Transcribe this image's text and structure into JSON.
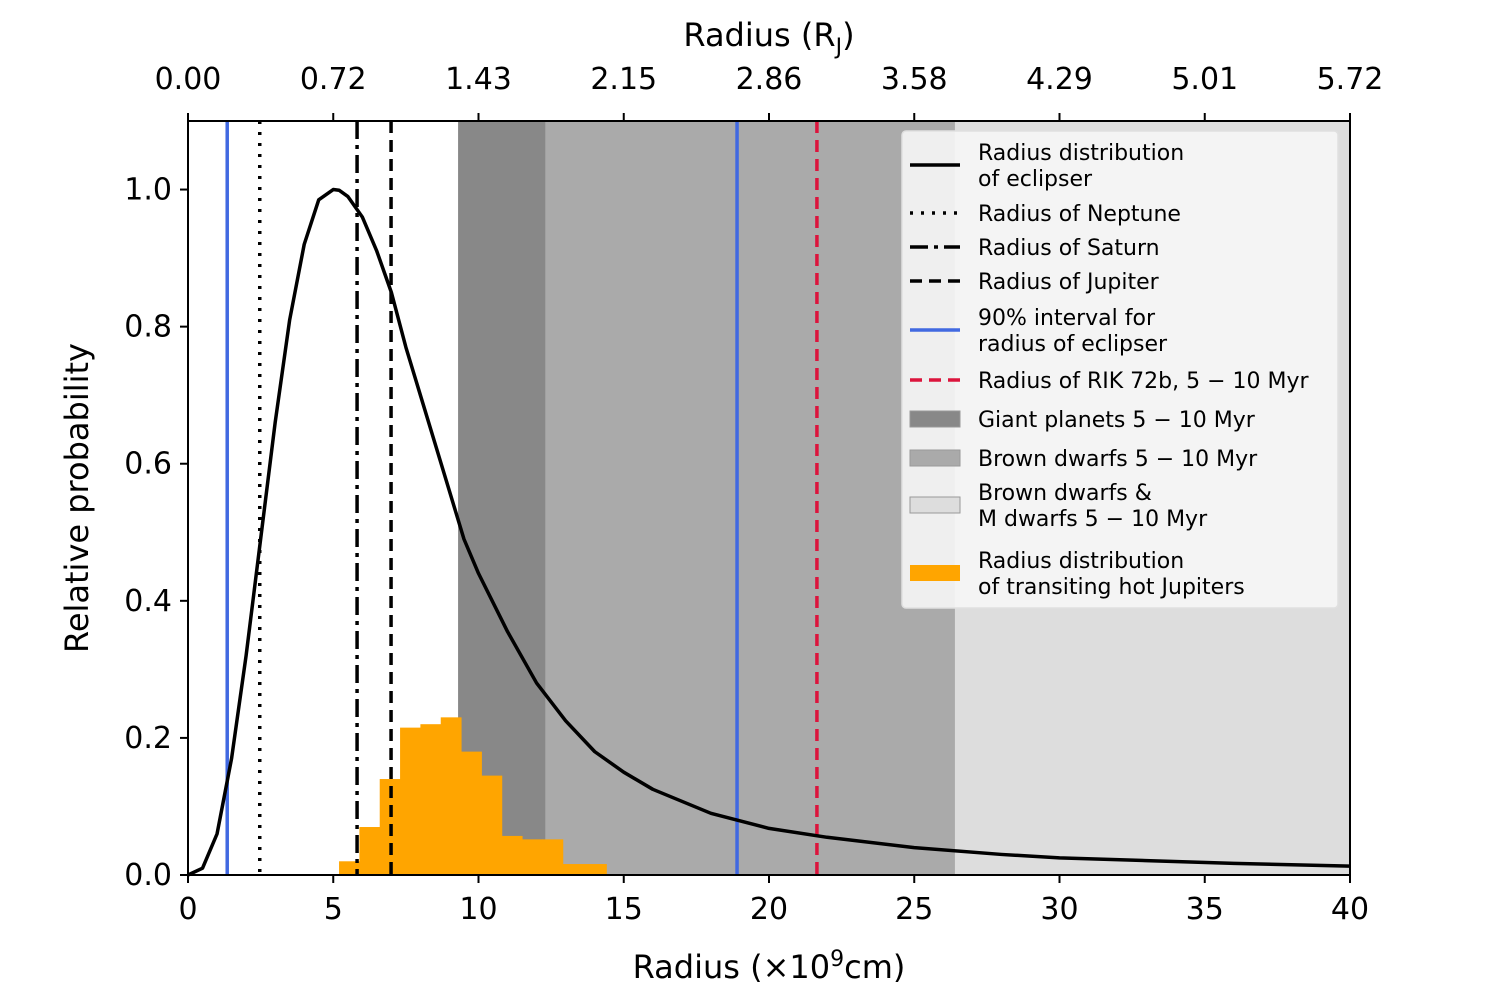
{
  "chart_data": {
    "type": "line",
    "xlabel_prefix": "Radius (×10",
    "xlabel_exp": "9",
    "xlabel_suffix": "cm)",
    "ylabel": "Relative probability",
    "top_xlabel_prefix": "Radius (R",
    "top_xlabel_sub": "J",
    "top_xlabel_suffix": ")",
    "xlim": [
      0,
      40
    ],
    "ylim": [
      0,
      1.1
    ],
    "x_ticks": [
      0,
      5,
      10,
      15,
      20,
      25,
      30,
      35,
      40
    ],
    "x_tick_labels": [
      "0",
      "5",
      "10",
      "15",
      "20",
      "25",
      "30",
      "35",
      "40"
    ],
    "y_ticks": [
      0.0,
      0.2,
      0.4,
      0.6,
      0.8,
      1.0
    ],
    "y_tick_labels": [
      "0.0",
      "0.2",
      "0.4",
      "0.6",
      "0.8",
      "1.0"
    ],
    "top_ticks_at_x": [
      0,
      5,
      10,
      15,
      20,
      25,
      30,
      35,
      40
    ],
    "top_tick_labels": [
      "0.00",
      "0.72",
      "1.43",
      "2.15",
      "2.86",
      "3.58",
      "4.29",
      "5.01",
      "5.72"
    ],
    "regions": [
      {
        "name": "Brown dwarfs & M dwarfs 5 − 10 Myr",
        "x0": 9.3,
        "x1": 40,
        "color": "#dddddd"
      },
      {
        "name": "Brown dwarfs 5 − 10 Myr",
        "x0": 9.3,
        "x1": 26.4,
        "color": "#aaaaaa"
      },
      {
        "name": "Giant planets 5 − 10 Myr",
        "x0": 9.3,
        "x1": 12.3,
        "color": "#888888"
      }
    ],
    "eclipser_distribution": {
      "name": "Radius distribution of eclipser",
      "x": [
        0,
        0.5,
        1.0,
        1.5,
        2.0,
        2.5,
        3.0,
        3.5,
        4.0,
        4.5,
        5.0,
        5.2,
        5.5,
        6.0,
        6.5,
        7.0,
        7.5,
        8.0,
        8.5,
        9.0,
        9.5,
        10,
        11,
        12,
        13,
        14,
        15,
        16,
        18,
        20,
        22,
        25,
        28,
        30,
        33,
        36,
        40
      ],
      "y": [
        0.0,
        0.01,
        0.06,
        0.17,
        0.32,
        0.49,
        0.66,
        0.81,
        0.92,
        0.985,
        1.0,
        0.999,
        0.99,
        0.96,
        0.91,
        0.85,
        0.77,
        0.7,
        0.63,
        0.56,
        0.49,
        0.44,
        0.355,
        0.28,
        0.225,
        0.18,
        0.15,
        0.125,
        0.09,
        0.068,
        0.055,
        0.04,
        0.03,
        0.025,
        0.021,
        0.017,
        0.013
      ],
      "color": "#000000"
    },
    "vertical_lines": [
      {
        "name": "Radius of Neptune",
        "x": 2.47,
        "style": "dotted",
        "color": "#000000"
      },
      {
        "name": "Radius of Saturn",
        "x": 5.82,
        "style": "dashdot",
        "color": "#000000"
      },
      {
        "name": "Radius of Jupiter",
        "x": 6.99,
        "style": "dashed",
        "color": "#000000"
      },
      {
        "name": "90% interval lower",
        "x": 1.35,
        "style": "solid",
        "color": "#4169e1"
      },
      {
        "name": "90% interval upper",
        "x": 18.9,
        "style": "solid",
        "color": "#4169e1"
      },
      {
        "name": "Radius of RIK 72b",
        "x": 21.65,
        "style": "dashed",
        "color": "#dc143c"
      }
    ],
    "hot_jupiter_histogram": {
      "name": "Radius distribution of transiting hot Jupiters",
      "bin_edges": [
        5.2,
        5.9,
        6.6,
        7.3,
        8.0,
        8.7,
        9.4,
        10.1,
        10.8,
        11.5,
        12.2,
        12.9,
        13.6,
        14.4
      ],
      "values": [
        0.02,
        0.07,
        0.14,
        0.215,
        0.22,
        0.23,
        0.18,
        0.145,
        0.057,
        0.052,
        0.052,
        0.016,
        0.016
      ],
      "color": "#ffa500"
    },
    "legend": {
      "position": "upper-right",
      "entries": [
        {
          "symbol": "solid",
          "color": "#000000",
          "line1": "Radius distribution",
          "line2": "of eclipser"
        },
        {
          "symbol": "dotted",
          "color": "#000000",
          "line1": "Radius of Neptune",
          "line2": ""
        },
        {
          "symbol": "dashdot",
          "color": "#000000",
          "line1": "Radius of Saturn",
          "line2": ""
        },
        {
          "symbol": "dashed",
          "color": "#000000",
          "line1": "Radius of Jupiter",
          "line2": ""
        },
        {
          "symbol": "solid",
          "color": "#4169e1",
          "line1": "90% interval for",
          "line2": "radius of eclipser"
        },
        {
          "symbol": "dashed",
          "color": "#dc143c",
          "line1": "Radius of RIK 72b, 5 − 10 Myr",
          "line2": ""
        },
        {
          "symbol": "patch",
          "color": "#888888",
          "line1": "Giant planets 5 − 10 Myr",
          "line2": ""
        },
        {
          "symbol": "patch",
          "color": "#aaaaaa",
          "line1": "Brown dwarfs 5 − 10 Myr",
          "line2": ""
        },
        {
          "symbol": "patch",
          "color": "#dddddd",
          "line1": "Brown dwarfs &",
          "line2": "M dwarfs 5 − 10 Myr"
        },
        {
          "symbol": "patch",
          "color": "#ffa500",
          "line1": "Radius distribution",
          "line2": "of transiting hot Jupiters"
        }
      ]
    }
  }
}
